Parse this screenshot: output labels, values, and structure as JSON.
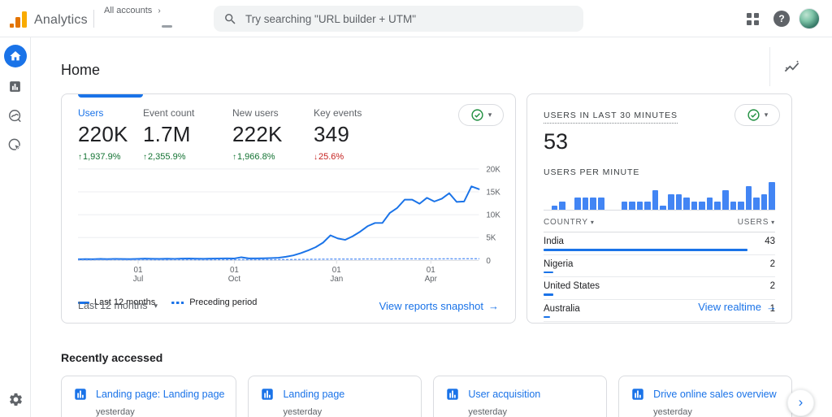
{
  "topbar": {
    "brand": "Analytics",
    "breadcrumb": "All accounts",
    "search_placeholder": "Try searching \"URL builder + UTM\""
  },
  "page": {
    "title": "Home"
  },
  "icons": {
    "up": "↑",
    "down": "↓",
    "caret": "▾",
    "arrow_right": "→",
    "chevron_right": "›",
    "help": "?",
    "breadcrumb_chevron": "›"
  },
  "colors": {
    "accent_blue": "#1a73e8",
    "bar_blue": "#4285f4",
    "positive_green": "#137333",
    "negative_red": "#c5221f",
    "check_green": "#1e8e3e",
    "logo_orange_dark": "#e37400",
    "logo_orange_light": "#f9ab00",
    "text_secondary": "#5f6368",
    "border": "#dadce0"
  },
  "overview_card": {
    "metrics": [
      {
        "label": "Users",
        "value": "220K",
        "change": "1,937.9%",
        "direction": "up",
        "selected": true
      },
      {
        "label": "Event count",
        "value": "1.7M",
        "change": "2,355.9%",
        "direction": "up",
        "selected": false
      },
      {
        "label": "New users",
        "value": "222K",
        "change": "1,966.8%",
        "direction": "up",
        "selected": false
      },
      {
        "label": "Key events",
        "value": "349",
        "change": "25.6%",
        "direction": "down",
        "selected": false
      }
    ],
    "date_range": "Last 12 months",
    "link": "View reports snapshot"
  },
  "realtime": {
    "title": "USERS IN LAST 30 MINUTES",
    "value": "53",
    "chart_label": "USERS PER MINUTE",
    "table": {
      "col_country": "COUNTRY",
      "col_users": "USERS",
      "rows": [
        {
          "country": "India",
          "users": 43
        },
        {
          "country": "Nigeria",
          "users": 2
        },
        {
          "country": "United States",
          "users": 2
        },
        {
          "country": "Australia",
          "users": 1
        }
      ]
    },
    "link": "View realtime"
  },
  "recent": {
    "title": "Recently accessed",
    "items": [
      {
        "label": "Landing page: Landing page",
        "time": "yesterday"
      },
      {
        "label": "Landing page",
        "time": "yesterday"
      },
      {
        "label": "User acquisition",
        "time": "yesterday"
      },
      {
        "label": "Drive online sales overview",
        "time": "yesterday"
      }
    ]
  },
  "chart_data": [
    {
      "type": "line",
      "title": "Users over last 12 months vs preceding period",
      "ylim": [
        0,
        20000
      ],
      "yticks": [
        {
          "label": "0",
          "value": 0
        },
        {
          "label": "5K",
          "value": 5000
        },
        {
          "label": "10K",
          "value": 10000
        },
        {
          "label": "15K",
          "value": 15000
        },
        {
          "label": "20K",
          "value": 20000
        }
      ],
      "xticks": [
        {
          "label": "01 Jul",
          "pos": 0.15
        },
        {
          "label": "01 Oct",
          "pos": 0.39
        },
        {
          "label": "01 Jan",
          "pos": 0.645
        },
        {
          "label": "01 Apr",
          "pos": 0.88
        }
      ],
      "grid": true,
      "legend_position": "bottom",
      "series": [
        {
          "name": "Last 12 months",
          "style": "solid",
          "color": "#1a73e8",
          "values": [
            250,
            300,
            280,
            330,
            300,
            350,
            320,
            300,
            350,
            400,
            370,
            340,
            380,
            350,
            400,
            420,
            390,
            360,
            400,
            430,
            450,
            420,
            700,
            450,
            460,
            480,
            520,
            600,
            800,
            1100,
            1600,
            2200,
            2900,
            3900,
            5500,
            4800,
            4500,
            5300,
            6300,
            7500,
            8200,
            8200,
            10400,
            11500,
            13300,
            13300,
            12400,
            13700,
            12900,
            13500,
            14700,
            12800,
            12900,
            16200,
            15600
          ]
        },
        {
          "name": "Preceding period",
          "style": "dotted",
          "color": "#5e97f6",
          "values": [
            150,
            160,
            150,
            170,
            160,
            170,
            160,
            150,
            160,
            170,
            160,
            150,
            160,
            170,
            160,
            170,
            160,
            150,
            160,
            170,
            180,
            170,
            180,
            170,
            180,
            190,
            180,
            190,
            200,
            210,
            220,
            240,
            260,
            280,
            300,
            310,
            300,
            310,
            320,
            330,
            340,
            330,
            340,
            350,
            340,
            350,
            340,
            350,
            340,
            350,
            360,
            350,
            360,
            370,
            360
          ]
        }
      ]
    },
    {
      "type": "bar",
      "title": "USERS PER MINUTE",
      "values": [
        0,
        1,
        2,
        0,
        3,
        3,
        3,
        3,
        0,
        0,
        2,
        2,
        2,
        2,
        5,
        1,
        4,
        4,
        3,
        2,
        2,
        3,
        2,
        5,
        2,
        2,
        6,
        3,
        4,
        7
      ],
      "ylim": [
        0,
        7
      ]
    }
  ]
}
